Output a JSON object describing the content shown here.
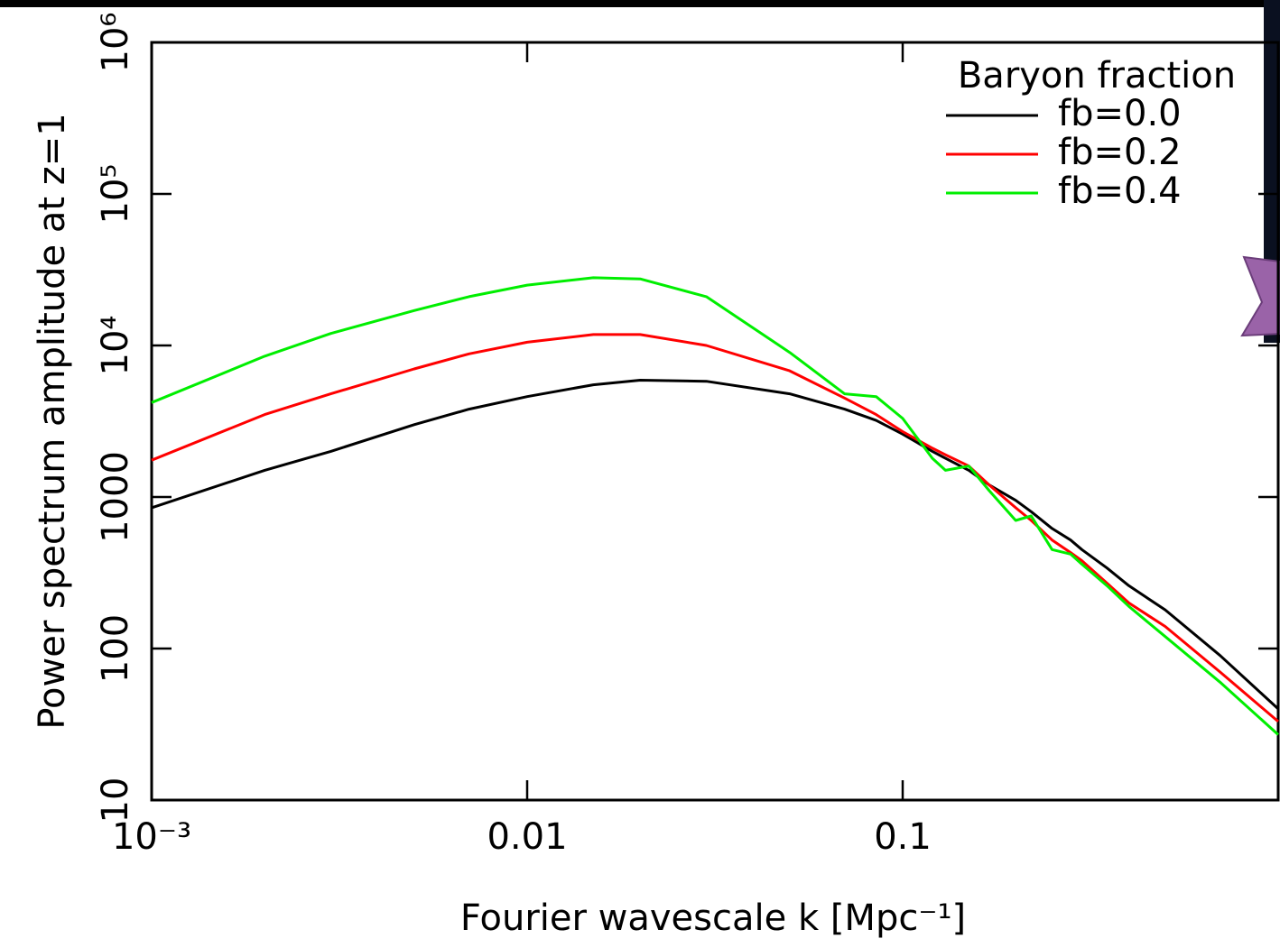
{
  "chart_data": {
    "type": "line",
    "xlabel": "Fourier wavescale k [Mpc⁻¹]",
    "ylabel": "Power spectrum amplitude at z=1",
    "legend_title": "Baryon fraction",
    "legend_position": "upper right",
    "xscale": "log",
    "yscale": "log",
    "xlim": [
      0.001,
      1
    ],
    "ylim": [
      10,
      1000000
    ],
    "xticks": [
      {
        "value": 0.001,
        "label": "10⁻³"
      },
      0.01,
      0.1
    ],
    "yticks": [
      10,
      100,
      1000,
      {
        "value": 10000,
        "label": "10⁴"
      },
      {
        "value": 100000,
        "label": "10⁵"
      },
      {
        "value": 1000000,
        "label": "10⁶"
      }
    ],
    "x": [
      0.001,
      0.002,
      0.003,
      0.005,
      0.007,
      0.01,
      0.015,
      0.02,
      0.03,
      0.05,
      0.07,
      0.085,
      0.1,
      0.12,
      0.13,
      0.15,
      0.17,
      0.2,
      0.22,
      0.25,
      0.28,
      0.3,
      0.35,
      0.4,
      0.5,
      0.7,
      1
    ],
    "series": [
      {
        "name": "fb=0.0",
        "color": "#000000",
        "values": [
          850,
          1500,
          2000,
          3000,
          3800,
          4600,
          5500,
          5900,
          5800,
          4800,
          3800,
          3200,
          2600,
          2000,
          1800,
          1500,
          1200,
          950,
          800,
          620,
          520,
          450,
          340,
          260,
          180,
          90,
          40
        ]
      },
      {
        "name": "fb=0.2",
        "color": "#ff0000",
        "values": [
          1750,
          3500,
          4800,
          7000,
          8800,
          10500,
          11800,
          11800,
          10000,
          6800,
          4500,
          3500,
          2700,
          2100,
          1900,
          1600,
          1200,
          850,
          700,
          520,
          430,
          380,
          270,
          200,
          140,
          70,
          33
        ]
      },
      {
        "name": "fb=0.4",
        "color": "#00ee00",
        "values": [
          4200,
          8500,
          12000,
          17000,
          21000,
          25000,
          28000,
          27500,
          21000,
          9000,
          4800,
          4600,
          3300,
          1800,
          1500,
          1600,
          1100,
          700,
          750,
          450,
          420,
          360,
          260,
          190,
          120,
          60,
          27
        ]
      }
    ]
  }
}
